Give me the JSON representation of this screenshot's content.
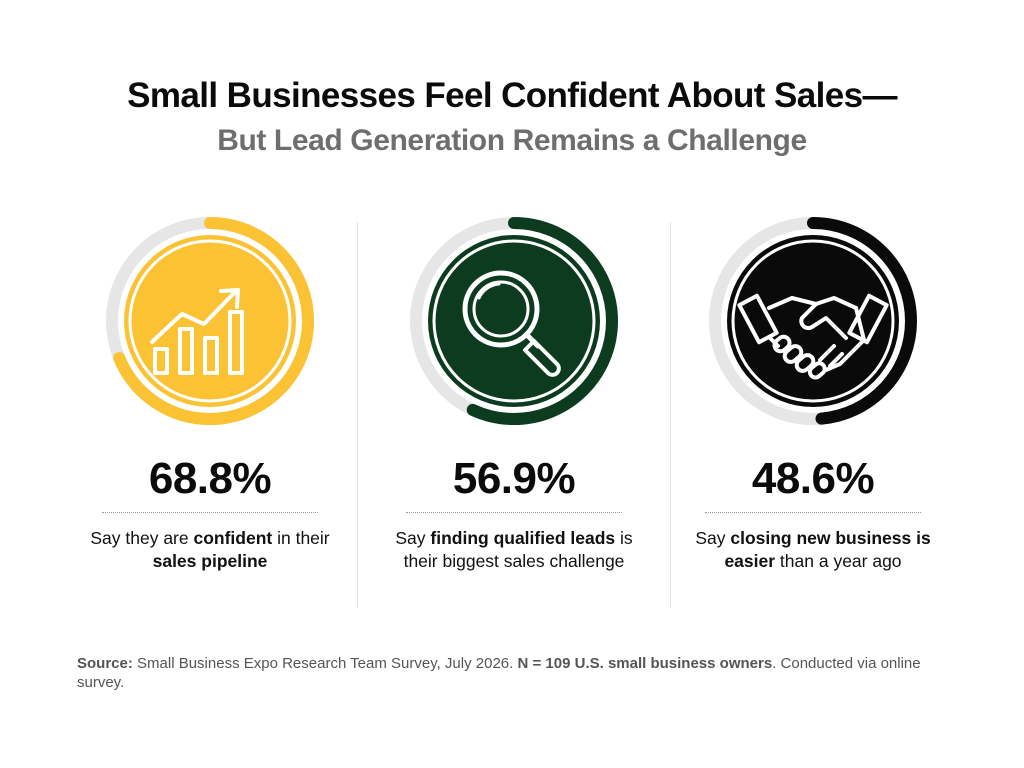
{
  "header": {
    "title": "Small Businesses Feel Confident About Sales—",
    "subtitle": "But Lead Generation Remains a Challenge"
  },
  "chart_data": {
    "type": "donut-progress",
    "track_color": "#e6e6e6",
    "items": [
      {
        "id": "sales-pipeline",
        "value": 68.8,
        "label": "68.8%",
        "icon": "bar-chart-growth-icon",
        "color": "#fbc233",
        "desc": [
          {
            "text": "Say they are ",
            "bold": false
          },
          {
            "text": "confident",
            "bold": true
          },
          {
            "text": " in their ",
            "bold": false
          },
          {
            "text": "sales pipeline",
            "bold": true
          }
        ]
      },
      {
        "id": "qualified-leads",
        "value": 56.9,
        "label": "56.9%",
        "icon": "magnifying-glass-icon",
        "color": "#0d3b20",
        "desc": [
          {
            "text": "Say ",
            "bold": false
          },
          {
            "text": "finding qualified leads",
            "bold": true
          },
          {
            "text": " is their biggest sales challenge",
            "bold": false
          }
        ]
      },
      {
        "id": "closing-business",
        "value": 48.6,
        "label": "48.6%",
        "icon": "handshake-icon",
        "color": "#0a0a0a",
        "desc": [
          {
            "text": "Say ",
            "bold": false
          },
          {
            "text": "closing new business is easier",
            "bold": true
          },
          {
            "text": " than a year ago",
            "bold": false
          }
        ]
      }
    ]
  },
  "footer": {
    "source_label": "Source:",
    "source_text": " Small Business Expo Research Team Survey, July 2026. ",
    "sample_bold": "N = 109 U.S. small business owners",
    "tail": ". Conducted via online survey."
  }
}
